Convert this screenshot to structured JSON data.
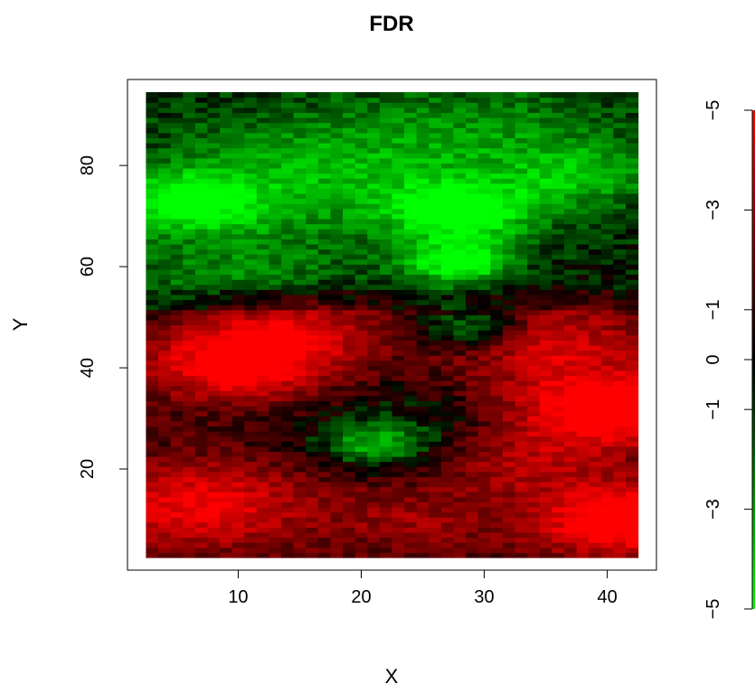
{
  "chart_data": {
    "type": "heatmap",
    "title": "FDR",
    "xlabel": "X",
    "ylabel": "Y",
    "xlim": [
      1,
      44
    ],
    "ylim": [
      0,
      97
    ],
    "x_ticks": [
      "10",
      "20",
      "30",
      "40"
    ],
    "y_ticks": [
      "20",
      "40",
      "60",
      "80"
    ],
    "grid": false,
    "colors": {
      "high": "#ff0000",
      "mid": "#000000",
      "low": "#00ff00"
    },
    "x_range": [
      3,
      42
    ],
    "y_range": [
      3,
      94
    ],
    "legend": {
      "position": "right",
      "tick_labels": [
        "−5",
        "−3",
        "−1",
        "0",
        "−1",
        "−3",
        "−5"
      ],
      "values": [
        5,
        3,
        1,
        0,
        -1,
        -3,
        -5
      ]
    }
  }
}
